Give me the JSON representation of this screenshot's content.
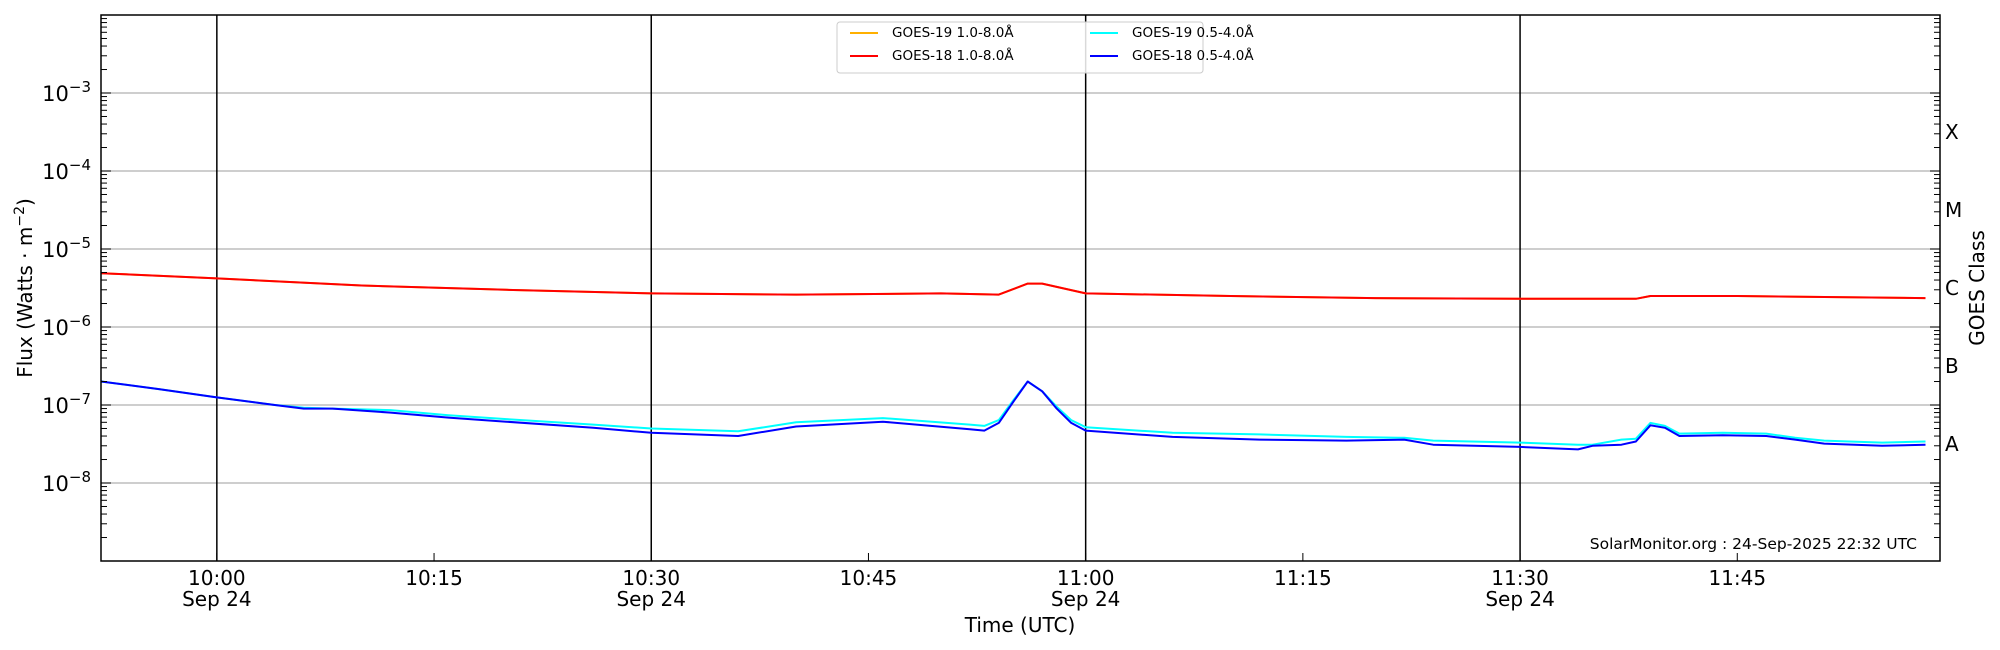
{
  "chart_data": {
    "type": "line",
    "xlabel": "Time (UTC)",
    "ylabel": {
      "main": "Flux (Watts · m",
      "exponent": "−2",
      "close": ")"
    },
    "right_ylabel": "GOES Class",
    "yscale": "log",
    "ylim": [
      1e-09,
      0.01
    ],
    "xlim": [
      "09:52",
      "11:59"
    ],
    "grid": "horizontal at decades; vertical black lines at half hours",
    "yticks": [
      {
        "value": 1e-08,
        "base": "10",
        "exp": "−8"
      },
      {
        "value": 1e-07,
        "base": "10",
        "exp": "−7"
      },
      {
        "value": 1e-06,
        "base": "10",
        "exp": "−6"
      },
      {
        "value": 1e-05,
        "base": "10",
        "exp": "−5"
      },
      {
        "value": 0.0001,
        "base": "10",
        "exp": "−4"
      },
      {
        "value": 0.001,
        "base": "10",
        "exp": "−3"
      }
    ],
    "class_labels": [
      {
        "label": "A",
        "value": 3.16e-08
      },
      {
        "label": "B",
        "value": 3.16e-07
      },
      {
        "label": "C",
        "value": 3.16e-06
      },
      {
        "label": "M",
        "value": 3.16e-05
      },
      {
        "label": "X",
        "value": 0.000316
      }
    ],
    "xticks": [
      {
        "time": "10:00",
        "label": "10:00",
        "date": "Sep 24",
        "line": true
      },
      {
        "time": "10:15",
        "label": "10:15",
        "date": "",
        "line": false
      },
      {
        "time": "10:30",
        "label": "10:30",
        "date": "Sep 24",
        "line": true
      },
      {
        "time": "10:45",
        "label": "10:45",
        "date": "",
        "line": false
      },
      {
        "time": "11:00",
        "label": "11:00",
        "date": "Sep 24",
        "line": true
      },
      {
        "time": "11:15",
        "label": "11:15",
        "date": "",
        "line": false
      },
      {
        "time": "11:30",
        "label": "11:30",
        "date": "Sep 24",
        "line": true
      },
      {
        "time": "11:45",
        "label": "11:45",
        "date": "",
        "line": false
      }
    ],
    "legend": {
      "placement": "top-center"
    },
    "annotation": "SolarMonitor.org : 24-Sep-2025 22:32 UTC",
    "series": [
      {
        "name": "GOES-19 1.0-8.0Å",
        "color": "#ffb000",
        "x": [
          "09:52",
          "10:00",
          "10:10",
          "10:20",
          "10:30",
          "10:40",
          "10:50",
          "10:54",
          "10:56",
          "10:57",
          "11:00",
          "11:10",
          "11:20",
          "11:30",
          "11:38",
          "11:39",
          "11:45",
          "11:58"
        ],
        "y": [
          4.9e-06,
          4.2e-06,
          3.4e-06,
          3e-06,
          2.7e-06,
          2.6e-06,
          2.7e-06,
          2.6e-06,
          3.6e-06,
          3.6e-06,
          2.7e-06,
          2.5e-06,
          2.35e-06,
          2.3e-06,
          2.3e-06,
          2.5e-06,
          2.5e-06,
          2.35e-06
        ]
      },
      {
        "name": "GOES-18 1.0-8.0Å",
        "color": "#ff0000",
        "x": [
          "09:52",
          "10:00",
          "10:10",
          "10:20",
          "10:30",
          "10:40",
          "10:50",
          "10:54",
          "10:56",
          "10:57",
          "11:00",
          "11:10",
          "11:20",
          "11:30",
          "11:38",
          "11:39",
          "11:45",
          "11:58"
        ],
        "y": [
          4.9e-06,
          4.2e-06,
          3.4e-06,
          3e-06,
          2.7e-06,
          2.6e-06,
          2.7e-06,
          2.6e-06,
          3.6e-06,
          3.6e-06,
          2.7e-06,
          2.5e-06,
          2.35e-06,
          2.3e-06,
          2.3e-06,
          2.5e-06,
          2.5e-06,
          2.35e-06
        ]
      },
      {
        "name": "GOES-19 0.5-4.0Å",
        "color": "#00ffff",
        "x": [
          "09:52",
          "09:56",
          "10:00",
          "10:04",
          "10:06",
          "10:08",
          "10:12",
          "10:16",
          "10:20",
          "10:26",
          "10:30",
          "10:36",
          "10:40",
          "10:46",
          "10:52",
          "10:53",
          "10:54",
          "10:55",
          "10:56",
          "10:57",
          "10:58",
          "10:59",
          "11:00",
          "11:06",
          "11:12",
          "11:18",
          "11:22",
          "11:24",
          "11:30",
          "11:34",
          "11:35",
          "11:37",
          "11:38",
          "11:39",
          "11:40",
          "11:41",
          "11:44",
          "11:47",
          "11:49",
          "11:51",
          "11:55",
          "11:58"
        ],
        "y": [
          2e-07,
          1.6e-07,
          1.25e-07,
          1e-07,
          9.2e-08,
          9e-08,
          8.6e-08,
          7.4e-08,
          6.6e-08,
          5.6e-08,
          5e-08,
          4.6e-08,
          6e-08,
          6.8e-08,
          5.6e-08,
          5.4e-08,
          6.4e-08,
          1.15e-07,
          2e-07,
          1.5e-07,
          9.5e-08,
          6.4e-08,
          5.2e-08,
          4.4e-08,
          4.2e-08,
          3.9e-08,
          3.8e-08,
          3.5e-08,
          3.3e-08,
          3.1e-08,
          3.1e-08,
          3.6e-08,
          3.7e-08,
          5.9e-08,
          5.4e-08,
          4.3e-08,
          4.4e-08,
          4.3e-08,
          3.8e-08,
          3.5e-08,
          3.3e-08,
          3.4e-08
        ]
      },
      {
        "name": "GOES-18 0.5-4.0Å",
        "color": "#0000ff",
        "x": [
          "09:52",
          "09:56",
          "10:00",
          "10:04",
          "10:06",
          "10:08",
          "10:12",
          "10:16",
          "10:20",
          "10:26",
          "10:30",
          "10:36",
          "10:40",
          "10:46",
          "10:52",
          "10:53",
          "10:54",
          "10:55",
          "10:56",
          "10:57",
          "10:58",
          "10:59",
          "11:00",
          "11:06",
          "11:12",
          "11:18",
          "11:22",
          "11:24",
          "11:30",
          "11:34",
          "11:35",
          "11:37",
          "11:38",
          "11:39",
          "11:40",
          "11:41",
          "11:44",
          "11:47",
          "11:49",
          "11:51",
          "11:55",
          "11:58"
        ],
        "y": [
          2e-07,
          1.6e-07,
          1.25e-07,
          1e-07,
          9e-08,
          9e-08,
          8e-08,
          6.9e-08,
          6.1e-08,
          5.1e-08,
          4.4e-08,
          4e-08,
          5.3e-08,
          6.1e-08,
          4.9e-08,
          4.7e-08,
          5.9e-08,
          1.1e-07,
          2e-07,
          1.5e-07,
          9e-08,
          5.9e-08,
          4.7e-08,
          3.9e-08,
          3.6e-08,
          3.5e-08,
          3.6e-08,
          3.1e-08,
          2.9e-08,
          2.7e-08,
          3e-08,
          3.1e-08,
          3.4e-08,
          5.5e-08,
          5.1e-08,
          4e-08,
          4.1e-08,
          4e-08,
          3.6e-08,
          3.2e-08,
          3e-08,
          3.1e-08
        ]
      }
    ]
  }
}
